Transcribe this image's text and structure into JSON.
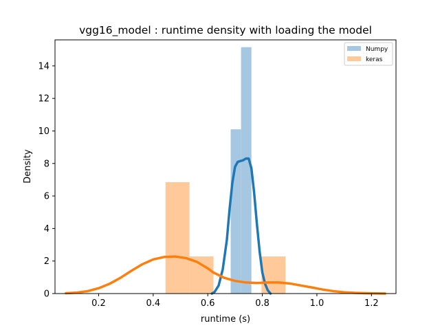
{
  "chart_data": {
    "type": "bar",
    "title": "vgg16_model : runtime density with loading the model",
    "xlabel": "runtime (s)",
    "ylabel": "Density",
    "xlim": [
      0.04,
      1.29
    ],
    "ylim": [
      0,
      15.6
    ],
    "xticks": [
      {
        "value": 0.2,
        "label": "0.2"
      },
      {
        "value": 0.4,
        "label": "0.4"
      },
      {
        "value": 0.6,
        "label": "0.6"
      },
      {
        "value": 0.8,
        "label": "0.8"
      },
      {
        "value": 1.0,
        "label": "1.0"
      },
      {
        "value": 1.2,
        "label": "1.2"
      }
    ],
    "yticks": [
      {
        "value": 0,
        "label": "0"
      },
      {
        "value": 2,
        "label": "2"
      },
      {
        "value": 4,
        "label": "4"
      },
      {
        "value": 6,
        "label": "6"
      },
      {
        "value": 8,
        "label": "8"
      },
      {
        "value": 10,
        "label": "10"
      },
      {
        "value": 12,
        "label": "12"
      },
      {
        "value": 14,
        "label": "14"
      }
    ],
    "grid": false,
    "legend_position": "top-right",
    "series": [
      {
        "name": "Numpy",
        "color": "#1f77b4",
        "hist_color": "#a6c7e1",
        "histogram": [
          {
            "x0": 0.684,
            "x1": 0.722,
            "density": 10.1
          },
          {
            "x0": 0.722,
            "x1": 0.76,
            "density": 15.15
          }
        ],
        "kde": [
          [
            0.615,
            0.0
          ],
          [
            0.625,
            0.1
          ],
          [
            0.64,
            0.5
          ],
          [
            0.655,
            1.5
          ],
          [
            0.67,
            3.3
          ],
          [
            0.68,
            5.2
          ],
          [
            0.69,
            6.8
          ],
          [
            0.7,
            7.8
          ],
          [
            0.71,
            8.1
          ],
          [
            0.72,
            8.15
          ],
          [
            0.73,
            8.2
          ],
          [
            0.74,
            8.3
          ],
          [
            0.75,
            8.3
          ],
          [
            0.76,
            7.7
          ],
          [
            0.77,
            6.2
          ],
          [
            0.78,
            4.3
          ],
          [
            0.79,
            2.6
          ],
          [
            0.8,
            1.3
          ],
          [
            0.81,
            0.6
          ],
          [
            0.82,
            0.2
          ],
          [
            0.83,
            0.0
          ]
        ]
      },
      {
        "name": "keras",
        "color": "#ff7f0e",
        "hist_color": "#ffc999",
        "histogram": [
          {
            "x0": 0.445,
            "x1": 0.533,
            "density": 6.85
          },
          {
            "x0": 0.533,
            "x1": 0.621,
            "density": 2.28
          },
          {
            "x0": 0.621,
            "x1": 0.709,
            "density": 0.0
          },
          {
            "x0": 0.709,
            "x1": 0.797,
            "density": 0.0
          },
          {
            "x0": 0.797,
            "x1": 0.885,
            "density": 2.28
          }
        ],
        "kde": [
          [
            0.08,
            0.02
          ],
          [
            0.12,
            0.06
          ],
          [
            0.16,
            0.15
          ],
          [
            0.2,
            0.33
          ],
          [
            0.24,
            0.6
          ],
          [
            0.28,
            0.97
          ],
          [
            0.32,
            1.4
          ],
          [
            0.36,
            1.8
          ],
          [
            0.4,
            2.1
          ],
          [
            0.44,
            2.25
          ],
          [
            0.48,
            2.28
          ],
          [
            0.52,
            2.18
          ],
          [
            0.56,
            1.95
          ],
          [
            0.6,
            1.55
          ],
          [
            0.62,
            1.3
          ],
          [
            0.66,
            0.97
          ],
          [
            0.7,
            0.78
          ],
          [
            0.74,
            0.68
          ],
          [
            0.78,
            0.65
          ],
          [
            0.82,
            0.68
          ],
          [
            0.86,
            0.68
          ],
          [
            0.9,
            0.62
          ],
          [
            0.94,
            0.5
          ],
          [
            0.98,
            0.38
          ],
          [
            1.02,
            0.25
          ],
          [
            1.06,
            0.15
          ],
          [
            1.1,
            0.08
          ],
          [
            1.14,
            0.04
          ],
          [
            1.18,
            0.02
          ],
          [
            1.25,
            0.0
          ]
        ]
      }
    ]
  }
}
